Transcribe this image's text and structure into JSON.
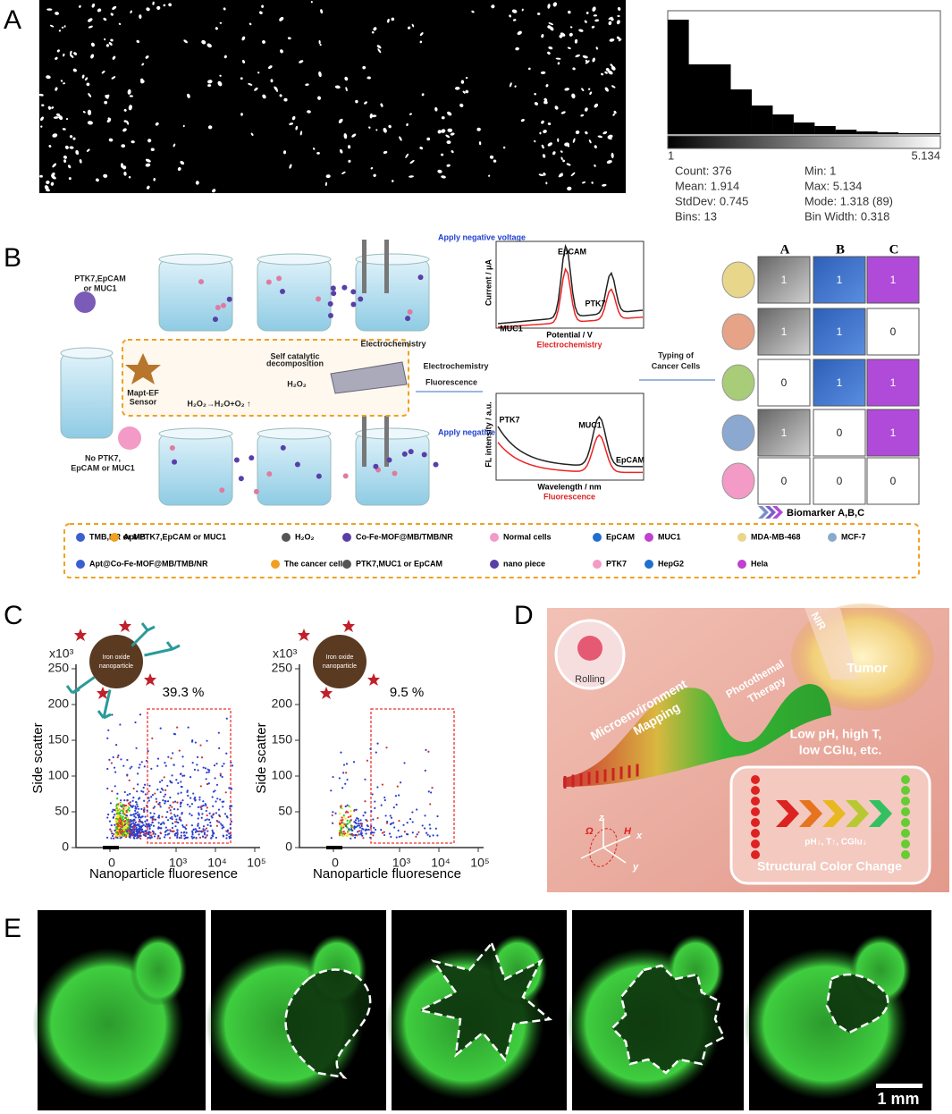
{
  "panels": {
    "a": {
      "label": "A",
      "hist_min": "1",
      "hist_max": "5.134",
      "stats": [
        "Count: 376",
        "Mean: 1.914",
        "StdDev: 0.745",
        "Bins: 13",
        "Min: 1",
        "Max: 5.134",
        "Mode: 1.318 (89)",
        "Bin Width: 0.318"
      ]
    },
    "b": {
      "label": "B",
      "apply_top": "Apply negative voltage",
      "apply_bottom": "Apply negative voltage",
      "cancer_input": [
        "PTK7,EpCAM",
        "or MUC1"
      ],
      "normal_input": [
        "No  PTK7,",
        "EpCAM or MUC1"
      ],
      "beaker_label": "Electrochemistry",
      "sensor": [
        "Mapt-EF",
        "Sensor"
      ],
      "self_cat": [
        "Self catalytic",
        "decomposition"
      ],
      "h2o2": "H₂O₂",
      "reaction": "H₂O₂→H₂O+O₂ ↑",
      "arrow_top": "Electrochemistry",
      "arrow_bottom": "Fluorescence",
      "echem": {
        "ylabel": "Current / μA",
        "xlabel": "Potential / V",
        "title": "Electrochemistry",
        "peaks": [
          "EpCAM",
          "PTK7",
          "MUC1"
        ]
      },
      "fluor": {
        "ylabel": "FL intensity / a.u.",
        "xlabel": "Wavelength / nm",
        "title": "Fluorescence",
        "peaks": [
          "PTK7",
          "MUC1",
          "EpCAM"
        ]
      },
      "typing": [
        "Typing of",
        "Cancer Cells"
      ],
      "table": {
        "headers": [
          "A",
          "B",
          "C"
        ],
        "rows": [
          [
            "1",
            "1",
            "1"
          ],
          [
            "1",
            "1",
            "0"
          ],
          [
            "0",
            "1",
            "1"
          ],
          [
            "1",
            "0",
            "1"
          ],
          [
            "0",
            "0",
            "0"
          ]
        ]
      },
      "biomarker": "Biomarker A,B,C",
      "legend": [
        "TMB,NR or MB",
        "Apt-PTK7,EpCAM or MUC1",
        "H₂O₂",
        "Co-Fe-MOF@MB/TMB/NR",
        "Normal cells",
        "EpCAM",
        "MUC1",
        "MDA-MB-468",
        "MCF-7",
        "Apt@Co-Fe-MOF@MB/TMB/NR",
        "The cancer cells",
        "PTK7,MUC1 or EpCAM",
        "nano piece",
        "PTK7",
        "HepG2",
        "Hela"
      ]
    },
    "c": {
      "label": "C",
      "plots": [
        {
          "multiplier": "x10³",
          "yticks": [
            "250",
            "200",
            "150",
            "100",
            "50",
            "0"
          ],
          "xticks": [
            "0",
            "10³",
            "10⁴",
            "10⁵"
          ],
          "ylabel": "Side scatter",
          "xlabel": "Nanoparticle fluoresence",
          "gate": "39.3 %",
          "particle": [
            "Iron oxide",
            "nanoparticle"
          ]
        },
        {
          "multiplier": "x10³",
          "yticks": [
            "250",
            "200",
            "150",
            "100",
            "50",
            "0"
          ],
          "xticks": [
            "0",
            "10³",
            "10⁴",
            "10⁵"
          ],
          "ylabel": "Side scatter",
          "xlabel": "Nanoparticle fluoresence",
          "gate": "9.5 %",
          "particle": [
            "Iron oxide",
            "nanoparticle"
          ]
        }
      ]
    },
    "d": {
      "label": "D",
      "rolling": "Rolling",
      "mapping": [
        "Microenvironment",
        "Mapping"
      ],
      "therapy": [
        "Photothemal",
        "Therapy"
      ],
      "nir": "NIR",
      "tumor": "Tumor",
      "conditions": [
        "Low pH, high T,",
        "low CGlu, etc."
      ],
      "change_params": "pH↓, T↑, CGlu↓",
      "change_title": "Structural Color Change",
      "axes": [
        "z",
        "x",
        "y",
        "Ω",
        "H"
      ]
    },
    "e": {
      "label": "E",
      "scale": "1 mm"
    }
  }
}
